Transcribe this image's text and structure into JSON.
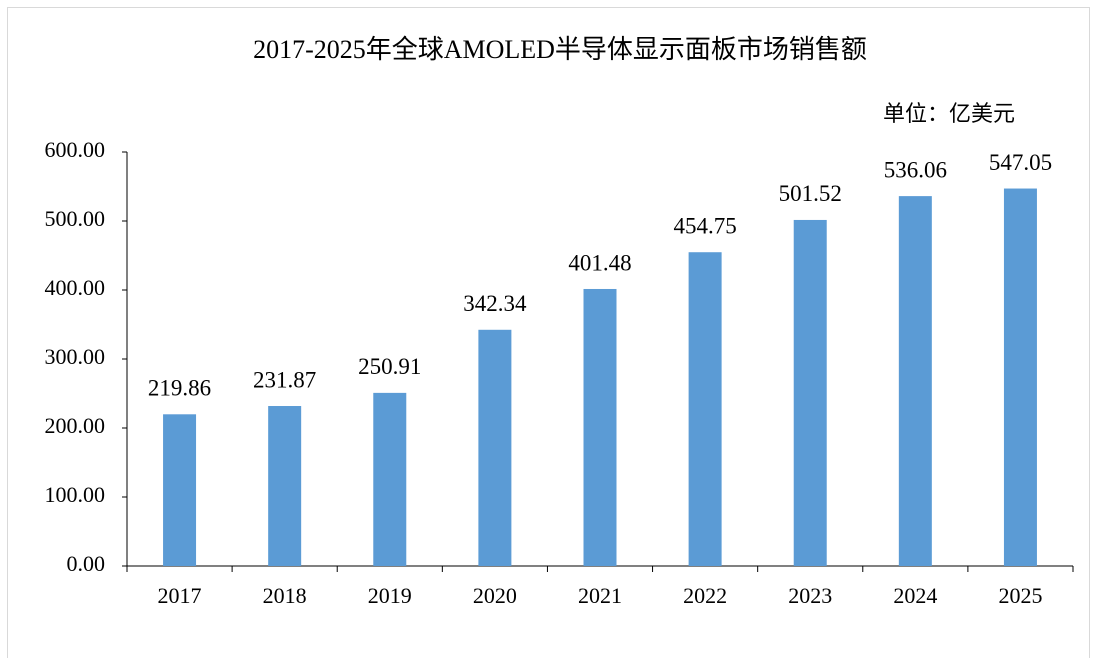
{
  "chart_data": {
    "type": "bar",
    "title": "2017-2025年全球AMOLED半导体显示面板市场销售额",
    "annotation": "单位：亿美元",
    "categories": [
      "2017",
      "2018",
      "2019",
      "2020",
      "2021",
      "2022",
      "2023",
      "2024",
      "2025"
    ],
    "values": [
      219.86,
      231.87,
      250.91,
      342.34,
      401.48,
      454.75,
      501.52,
      536.06,
      547.05
    ],
    "color": "#5b9bd5",
    "ylim": [
      0,
      600
    ],
    "yticks": [
      {
        "value": 0,
        "label": "0.00"
      },
      {
        "value": 100,
        "label": "100.00"
      },
      {
        "value": 200,
        "label": "200.00"
      },
      {
        "value": 300,
        "label": "300.00"
      },
      {
        "value": 400,
        "label": "400.00"
      },
      {
        "value": 500,
        "label": "500.00"
      },
      {
        "value": 600,
        "label": "600.00"
      }
    ],
    "grid": false
  }
}
